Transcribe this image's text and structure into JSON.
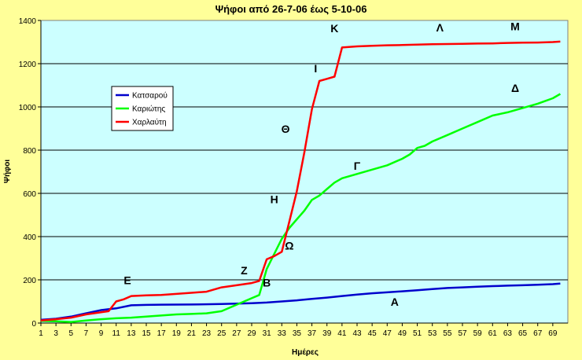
{
  "chart_data": {
    "type": "line",
    "title": "Ψήφοι από 26-7-06 έως 5-10-06",
    "xlabel": "Ημέρες",
    "ylabel": "Ψήφοι",
    "xlim": [
      1,
      71
    ],
    "ylim": [
      0,
      1400
    ],
    "yticks": [
      0,
      200,
      400,
      600,
      800,
      1000,
      1200,
      1400
    ],
    "xticks": [
      1,
      3,
      5,
      7,
      9,
      11,
      13,
      15,
      17,
      19,
      21,
      23,
      25,
      27,
      29,
      31,
      33,
      35,
      37,
      39,
      41,
      43,
      45,
      47,
      49,
      51,
      53,
      55,
      57,
      59,
      61,
      63,
      65,
      67,
      69
    ],
    "grid": "horizontal",
    "legend_position": "left",
    "colors": {
      "plot_bg": "#ccffff",
      "page_bg": "#ffff99",
      "grid": "#000000"
    },
    "series": [
      {
        "name": "Κατσαρού",
        "color": "#0000cc",
        "points": [
          [
            1,
            15
          ],
          [
            3,
            20
          ],
          [
            5,
            30
          ],
          [
            7,
            45
          ],
          [
            9,
            60
          ],
          [
            11,
            68
          ],
          [
            13,
            82
          ],
          [
            15,
            84
          ],
          [
            17,
            85
          ],
          [
            21,
            86
          ],
          [
            25,
            88
          ],
          [
            29,
            92
          ],
          [
            31,
            95
          ],
          [
            33,
            100
          ],
          [
            35,
            105
          ],
          [
            37,
            112
          ],
          [
            39,
            118
          ],
          [
            41,
            125
          ],
          [
            43,
            132
          ],
          [
            45,
            138
          ],
          [
            47,
            142
          ],
          [
            49,
            147
          ],
          [
            51,
            152
          ],
          [
            53,
            157
          ],
          [
            55,
            162
          ],
          [
            57,
            165
          ],
          [
            59,
            168
          ],
          [
            61,
            171
          ],
          [
            63,
            173
          ],
          [
            65,
            175
          ],
          [
            67,
            177
          ],
          [
            69,
            180
          ],
          [
            70,
            183
          ]
        ]
      },
      {
        "name": "Καριώτης",
        "color": "#00ff00",
        "points": [
          [
            1,
            10
          ],
          [
            3,
            8
          ],
          [
            5,
            5
          ],
          [
            7,
            12
          ],
          [
            9,
            18
          ],
          [
            11,
            22
          ],
          [
            13,
            25
          ],
          [
            15,
            30
          ],
          [
            17,
            35
          ],
          [
            19,
            40
          ],
          [
            21,
            42
          ],
          [
            23,
            45
          ],
          [
            25,
            55
          ],
          [
            27,
            85
          ],
          [
            29,
            115
          ],
          [
            30,
            130
          ],
          [
            31,
            250
          ],
          [
            32,
            320
          ],
          [
            33,
            390
          ],
          [
            34,
            440
          ],
          [
            35,
            480
          ],
          [
            36,
            520
          ],
          [
            37,
            570
          ],
          [
            38,
            590
          ],
          [
            39,
            620
          ],
          [
            40,
            650
          ],
          [
            41,
            670
          ],
          [
            43,
            690
          ],
          [
            45,
            710
          ],
          [
            47,
            730
          ],
          [
            49,
            760
          ],
          [
            50,
            780
          ],
          [
            51,
            810
          ],
          [
            52,
            820
          ],
          [
            53,
            840
          ],
          [
            55,
            870
          ],
          [
            57,
            900
          ],
          [
            59,
            930
          ],
          [
            61,
            960
          ],
          [
            63,
            975
          ],
          [
            65,
            995
          ],
          [
            67,
            1015
          ],
          [
            69,
            1040
          ],
          [
            70,
            1060
          ]
        ]
      },
      {
        "name": "Χαρλαύτη",
        "color": "#ff0000",
        "points": [
          [
            1,
            12
          ],
          [
            3,
            18
          ],
          [
            5,
            25
          ],
          [
            7,
            40
          ],
          [
            9,
            50
          ],
          [
            10,
            55
          ],
          [
            11,
            100
          ],
          [
            12,
            110
          ],
          [
            13,
            125
          ],
          [
            15,
            128
          ],
          [
            17,
            130
          ],
          [
            19,
            135
          ],
          [
            21,
            140
          ],
          [
            23,
            145
          ],
          [
            25,
            165
          ],
          [
            27,
            175
          ],
          [
            29,
            185
          ],
          [
            30,
            195
          ],
          [
            31,
            295
          ],
          [
            32,
            310
          ],
          [
            33,
            330
          ],
          [
            34,
            470
          ],
          [
            35,
            610
          ],
          [
            36,
            790
          ],
          [
            37,
            990
          ],
          [
            38,
            1120
          ],
          [
            39,
            1130
          ],
          [
            40,
            1140
          ],
          [
            41,
            1275
          ],
          [
            43,
            1280
          ],
          [
            45,
            1283
          ],
          [
            47,
            1285
          ],
          [
            49,
            1286
          ],
          [
            51,
            1288
          ],
          [
            53,
            1290
          ],
          [
            55,
            1291
          ],
          [
            57,
            1292
          ],
          [
            59,
            1293
          ],
          [
            61,
            1294
          ],
          [
            63,
            1296
          ],
          [
            65,
            1297
          ],
          [
            67,
            1298
          ],
          [
            69,
            1300
          ],
          [
            70,
            1302
          ]
        ]
      }
    ],
    "annotations": [
      {
        "text": "Ε",
        "x": 12.5,
        "y": 180
      },
      {
        "text": "Ζ",
        "x": 28,
        "y": 225
      },
      {
        "text": "Β",
        "x": 31,
        "y": 170
      },
      {
        "text": "Ω",
        "x": 34,
        "y": 340
      },
      {
        "text": "Η",
        "x": 32,
        "y": 555
      },
      {
        "text": "Θ",
        "x": 33.5,
        "y": 880
      },
      {
        "text": "Ι",
        "x": 37.5,
        "y": 1160
      },
      {
        "text": "Κ",
        "x": 40,
        "y": 1345
      },
      {
        "text": "Γ",
        "x": 43,
        "y": 710
      },
      {
        "text": "Λ",
        "x": 54,
        "y": 1350
      },
      {
        "text": "Μ",
        "x": 64,
        "y": 1355
      },
      {
        "text": "Δ",
        "x": 64,
        "y": 1070
      },
      {
        "text": "Α",
        "x": 48,
        "y": 80
      }
    ]
  }
}
